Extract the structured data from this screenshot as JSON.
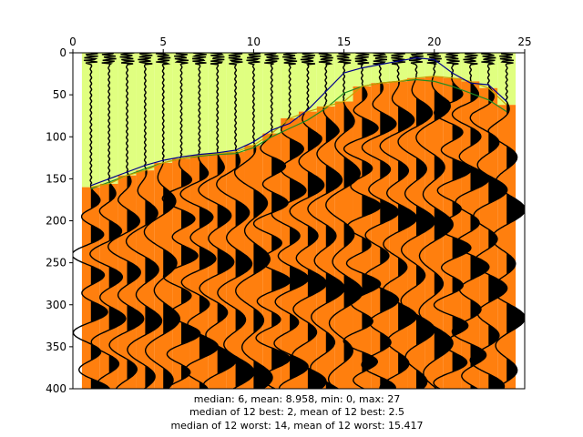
{
  "chart_data": {
    "type": "seismogram-wiggle",
    "title": "",
    "xlabel": "",
    "ylabel": "",
    "xlim": [
      0,
      25
    ],
    "ylim": [
      400,
      0
    ],
    "x_axis_position": "top",
    "y_inverted": true,
    "x_ticks": [
      "0",
      "5",
      "10",
      "15",
      "20",
      "25"
    ],
    "y_ticks": [
      "0",
      "50",
      "100",
      "150",
      "200",
      "250",
      "300",
      "350",
      "400"
    ],
    "grid": false,
    "legend": "none",
    "trace_count": 24,
    "trace_x": [
      1,
      2,
      3,
      4,
      5,
      6,
      7,
      8,
      9,
      10,
      11,
      12,
      13,
      14,
      15,
      16,
      17,
      18,
      19,
      20,
      21,
      22,
      23,
      24
    ],
    "first_break_picks": [
      160,
      156,
      146,
      140,
      131,
      126,
      122,
      120,
      118,
      110,
      96,
      78,
      70,
      64,
      58,
      40,
      36,
      34,
      30,
      28,
      30,
      34,
      42,
      62
    ],
    "upper_curve": [
      158,
      150,
      142,
      134,
      128,
      124,
      121,
      119,
      116,
      106,
      92,
      84,
      68,
      46,
      24,
      18,
      14,
      10,
      6,
      8,
      24,
      36,
      38,
      58
    ],
    "lower_curve": [
      162,
      154,
      146,
      138,
      131,
      126,
      123,
      121,
      120,
      113,
      100,
      90,
      80,
      66,
      48,
      40,
      36,
      34,
      32,
      34,
      40,
      48,
      56,
      70
    ],
    "region_colors": {
      "above_picks": "#e0ff80",
      "below_picks": "#ff7f0e",
      "wiggle": "#000000",
      "upper_curve": "#00008b",
      "lower_curve": "#228b22",
      "picks_line": "#c8a000"
    },
    "caption_lines": [
      "median: 6,   mean: 8.958,   min: 0,   max: 27",
      "median of 12 best: 2,   mean of 12 best: 2.5",
      "median of 12 worst: 14,    mean of 12 worst: 15.417"
    ]
  }
}
